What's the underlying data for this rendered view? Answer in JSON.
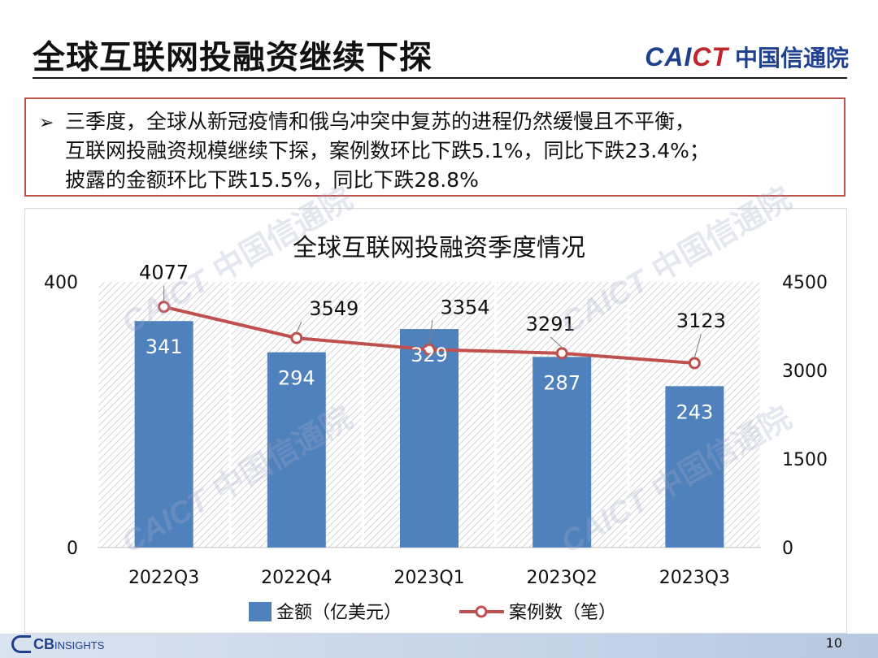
{
  "header": {
    "title": "全球互联网投融资继续下探",
    "logo_en_left": "CAI",
    "logo_en_right": "CT",
    "logo_cn": "中国信通院"
  },
  "callout": {
    "bullet": "➢",
    "lines": [
      "三季度，全球从新冠疫情和俄乌冲突中复苏的进程仍然缓慢且不平衡，",
      "互联网投融资规模继续下探，案例数环比下跌5.1%，同比下跌23.4%；",
      "披露的金额环比下跌15.5%，同比下跌28.8%"
    ]
  },
  "watermark_text": {
    "en": "CAICT",
    "cn": "中国信通院"
  },
  "footer": {
    "page_number": "10",
    "cb_logo": "CB",
    "cb_logo_small": "INSIGHTS"
  },
  "colors": {
    "bar": "#4f81bd",
    "line": "#c0504d",
    "callout_border": "#c0504d",
    "brand": "#1f3f8f"
  },
  "chart_data": {
    "type": "bar",
    "title": "全球互联网投融资季度情况",
    "categories": [
      "2022Q3",
      "2022Q4",
      "2023Q1",
      "2023Q2",
      "2023Q3"
    ],
    "series": [
      {
        "name": "金额（亿美元）",
        "type": "bar",
        "axis": "left",
        "values": [
          341,
          294,
          329,
          287,
          243
        ]
      },
      {
        "name": "案例数（笔）",
        "type": "line",
        "axis": "right",
        "values": [
          4077,
          3549,
          3354,
          3291,
          3123
        ]
      }
    ],
    "y_left": {
      "ylim": [
        0,
        400
      ],
      "ticks": [
        "0",
        "400"
      ]
    },
    "y_right": {
      "ylim": [
        0,
        4500
      ],
      "ticks": [
        "0",
        "1500",
        "3000",
        "4500"
      ]
    },
    "grid": true,
    "legend_position": "bottom"
  }
}
